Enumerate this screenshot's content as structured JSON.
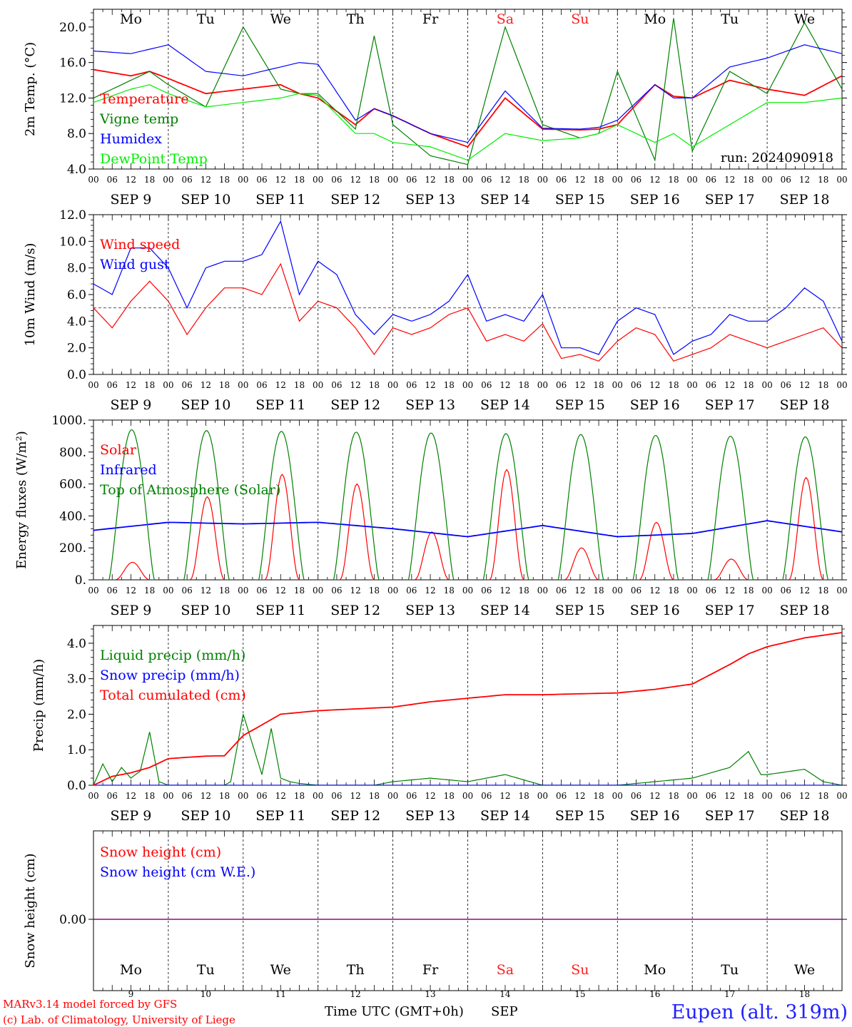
{
  "run": "run: 2024090918",
  "days": {
    "names": [
      "Mo",
      "Tu",
      "We",
      "Th",
      "Fr",
      "Sa",
      "Su",
      "Mo",
      "Tu",
      "We"
    ],
    "dates": [
      "SEP  9",
      "SEP 10",
      "SEP 11",
      "SEP 12",
      "SEP 13",
      "SEP 14",
      "SEP 15",
      "SEP 16",
      "SEP 17",
      "SEP 18"
    ],
    "numbers": [
      "9",
      "10",
      "11",
      "12",
      "13",
      "14",
      "15",
      "16",
      "17",
      "18"
    ],
    "weekend_flags": [
      false,
      false,
      false,
      false,
      false,
      true,
      true,
      false,
      false,
      false
    ],
    "weekday_color": "#000000",
    "weekend_color": "#ff2020"
  },
  "hour_ticks": [
    "00",
    "06",
    "12",
    "18"
  ],
  "footer": {
    "model": "MARv3.14 model forced by GFS",
    "lab": "(c) Lab. of Climatology, University of Liege",
    "time_axis": "Time UTC (GMT+0h)",
    "month": "SEP",
    "station": "Eupen (alt. 319m)"
  },
  "chart_data": [
    {
      "type": "line",
      "ylabel": "2m Temp. (°C)",
      "ylim": [
        4,
        22
      ],
      "yticks": [
        4,
        8,
        12,
        16,
        20
      ],
      "ytick_labels": [
        "4.0",
        "8.0",
        "12.0",
        "16.0",
        "20.0"
      ],
      "x_unit": "hours since SEP 9 00 UTC",
      "series": [
        {
          "name": "Temperature",
          "color": "#ff0000",
          "x": [
            0,
            12,
            18,
            24,
            36,
            48,
            60,
            66,
            72,
            84,
            90,
            96,
            108,
            120,
            132,
            144,
            156,
            162,
            168,
            180,
            186,
            192,
            204,
            216,
            228,
            240
          ],
          "values": [
            15.2,
            14.5,
            15.0,
            14.2,
            12.5,
            13.0,
            13.5,
            12.5,
            12.0,
            9.0,
            10.8,
            10.0,
            8.0,
            6.5,
            12.0,
            8.5,
            8.4,
            8.5,
            9.0,
            13.5,
            12.2,
            12.0,
            14.0,
            13.0,
            12.3,
            14.5
          ]
        },
        {
          "name": "Vigne temp",
          "color": "#008000",
          "x": [
            0,
            12,
            18,
            24,
            36,
            48,
            60,
            66,
            72,
            84,
            90,
            96,
            108,
            120,
            132,
            144,
            156,
            162,
            168,
            180,
            186,
            192,
            204,
            216,
            228,
            240
          ],
          "values": [
            12.0,
            14.0,
            15.0,
            13.5,
            11.0,
            20.0,
            13.0,
            12.5,
            12.5,
            8.5,
            19.0,
            9.0,
            5.5,
            4.5,
            20.0,
            9.0,
            7.5,
            8.0,
            15.0,
            5.0,
            21.0,
            6.0,
            15.0,
            12.5,
            20.5,
            13.0
          ]
        },
        {
          "name": "Humidex",
          "color": "#0000ff",
          "x": [
            0,
            12,
            18,
            24,
            36,
            48,
            60,
            66,
            72,
            84,
            90,
            96,
            108,
            120,
            132,
            144,
            156,
            162,
            168,
            180,
            186,
            192,
            204,
            216,
            228,
            240
          ],
          "values": [
            17.3,
            17.0,
            17.5,
            18.0,
            15.0,
            14.5,
            15.5,
            16.0,
            15.8,
            9.5,
            10.8,
            10.0,
            8.0,
            7.0,
            12.8,
            8.6,
            8.5,
            8.7,
            9.5,
            13.5,
            12.0,
            12.0,
            15.5,
            16.5,
            18.0,
            17.0
          ]
        },
        {
          "name": "DewPoint Temp",
          "color": "#00ee00",
          "x": [
            0,
            12,
            18,
            24,
            36,
            48,
            60,
            66,
            72,
            84,
            90,
            96,
            108,
            120,
            132,
            144,
            156,
            162,
            168,
            180,
            186,
            192,
            204,
            216,
            228,
            240
          ],
          "values": [
            11.5,
            13.0,
            13.5,
            12.5,
            11.0,
            11.5,
            12.0,
            12.5,
            12.3,
            8.0,
            8.0,
            7.0,
            6.5,
            5.0,
            8.0,
            7.2,
            7.5,
            8.0,
            9.0,
            7.0,
            8.0,
            6.5,
            9.0,
            11.5,
            11.5,
            12.0
          ]
        }
      ]
    },
    {
      "type": "line",
      "ylabel": "10m Wind (m/s)",
      "ylim": [
        0,
        12
      ],
      "yticks": [
        0,
        2,
        4,
        6,
        8,
        10,
        12
      ],
      "ytick_labels": [
        "0.0",
        "2.0",
        "4.0",
        "6.0",
        "8.0",
        "10.0",
        "12.0"
      ],
      "reference_line": 5,
      "series": [
        {
          "name": "Wind speed",
          "color": "#ff0000",
          "x": [
            0,
            6,
            12,
            18,
            24,
            30,
            36,
            42,
            48,
            54,
            60,
            66,
            72,
            78,
            84,
            90,
            96,
            102,
            108,
            114,
            120,
            126,
            132,
            138,
            144,
            150,
            156,
            162,
            168,
            174,
            180,
            186,
            192,
            198,
            204,
            210,
            216,
            222,
            228,
            234,
            240
          ],
          "values": [
            5.0,
            3.5,
            5.5,
            7.0,
            5.5,
            3.0,
            5.0,
            6.5,
            6.5,
            6.0,
            8.3,
            4.0,
            5.5,
            5.0,
            3.5,
            1.5,
            3.5,
            3.0,
            3.5,
            4.5,
            5.0,
            2.5,
            3.0,
            2.5,
            3.8,
            1.2,
            1.5,
            1.0,
            2.5,
            3.5,
            3.0,
            1.0,
            1.5,
            2.0,
            3.0,
            2.5,
            2.0,
            2.5,
            3.0,
            3.5,
            2.0
          ]
        },
        {
          "name": "Wind gust",
          "color": "#0000ff",
          "x": [
            0,
            6,
            12,
            18,
            24,
            30,
            36,
            42,
            48,
            54,
            60,
            66,
            72,
            78,
            84,
            90,
            96,
            102,
            108,
            114,
            120,
            126,
            132,
            138,
            144,
            150,
            156,
            162,
            168,
            174,
            180,
            186,
            192,
            198,
            204,
            210,
            216,
            222,
            228,
            234,
            240
          ],
          "values": [
            6.8,
            6.0,
            9.5,
            9.5,
            8.0,
            5.0,
            8.0,
            8.5,
            8.5,
            9.0,
            11.5,
            6.0,
            8.5,
            7.5,
            4.5,
            3.0,
            4.5,
            4.0,
            4.5,
            5.5,
            7.5,
            4.0,
            4.5,
            4.0,
            6.0,
            2.0,
            2.0,
            1.5,
            4.0,
            5.0,
            4.5,
            1.5,
            2.5,
            3.0,
            4.5,
            4.0,
            4.0,
            5.0,
            6.5,
            5.5,
            2.5
          ]
        }
      ]
    },
    {
      "type": "line",
      "ylabel": "Energy fluxes (W/m²)",
      "ylim": [
        0,
        1000
      ],
      "yticks": [
        0,
        200,
        400,
        600,
        800,
        1000
      ],
      "ytick_labels": [
        "0.",
        "200.",
        "400.",
        "600.",
        "800.",
        "1000."
      ],
      "series": [
        {
          "name": "Solar",
          "color": "#ff0000",
          "daily_peak": [
            110,
            520,
            660,
            600,
            300,
            690,
            200,
            360,
            130,
            640
          ]
        },
        {
          "name": "Infrared",
          "color": "#0000ff",
          "x": [
            0,
            24,
            48,
            72,
            96,
            120,
            144,
            168,
            192,
            216,
            240
          ],
          "values": [
            310,
            360,
            350,
            360,
            320,
            270,
            340,
            270,
            290,
            370,
            300
          ]
        },
        {
          "name": "Top of Atmosphere (Solar)",
          "color": "#008000",
          "daily_peak": [
            940,
            935,
            930,
            925,
            920,
            915,
            910,
            905,
            900,
            895
          ]
        }
      ]
    },
    {
      "type": "line",
      "ylabel": "Precip (mm/h)",
      "ylim": [
        0,
        4.5
      ],
      "yticks": [
        0,
        1,
        2,
        3,
        4
      ],
      "ytick_labels": [
        "0.0",
        "1.0",
        "2.0",
        "3.0",
        "4.0"
      ],
      "series": [
        {
          "name": "Liquid precip (mm/h)",
          "color": "#008000",
          "x": [
            0,
            3,
            6,
            9,
            12,
            15,
            18,
            21,
            24,
            36,
            42,
            44,
            48,
            54,
            57,
            60,
            63,
            66,
            72,
            90,
            96,
            108,
            120,
            132,
            144,
            168,
            180,
            192,
            204,
            210,
            214,
            216,
            220,
            228,
            234,
            240
          ],
          "values": [
            0.0,
            0.6,
            0.1,
            0.5,
            0.2,
            0.4,
            1.5,
            0.1,
            0.0,
            0.0,
            0.0,
            0.1,
            2.0,
            0.3,
            1.6,
            0.2,
            0.1,
            0.05,
            0.0,
            0.0,
            0.1,
            0.2,
            0.1,
            0.3,
            0.0,
            0.0,
            0.1,
            0.2,
            0.5,
            0.95,
            0.3,
            0.3,
            0.35,
            0.45,
            0.1,
            0.0
          ]
        },
        {
          "name": "Snow precip (mm/h)",
          "color": "#0000ff",
          "x": [
            0,
            240
          ],
          "values": [
            0,
            0
          ]
        },
        {
          "name": "Total cumulated (cm)",
          "color": "#ff0000",
          "x": [
            0,
            6,
            12,
            18,
            24,
            36,
            42,
            48,
            54,
            60,
            72,
            96,
            108,
            120,
            132,
            144,
            168,
            180,
            192,
            204,
            210,
            216,
            228,
            240
          ],
          "values": [
            0.0,
            0.25,
            0.35,
            0.5,
            0.75,
            0.82,
            0.83,
            1.4,
            1.7,
            2.0,
            2.1,
            2.2,
            2.35,
            2.45,
            2.55,
            2.55,
            2.6,
            2.7,
            2.85,
            3.4,
            3.7,
            3.9,
            4.15,
            4.3
          ]
        }
      ]
    },
    {
      "type": "line",
      "ylabel": "Snow height (cm)",
      "yticks": [
        0
      ],
      "ytick_labels": [
        "0.00"
      ],
      "series": [
        {
          "name": "Snow height (cm)",
          "color": "#ff0000",
          "x": [
            0,
            240
          ],
          "values": [
            0,
            0
          ]
        },
        {
          "name": "Snow height (cm W.E.)",
          "color": "#0000ff",
          "x": [
            0,
            240
          ],
          "values": [
            0,
            0
          ]
        }
      ]
    }
  ]
}
